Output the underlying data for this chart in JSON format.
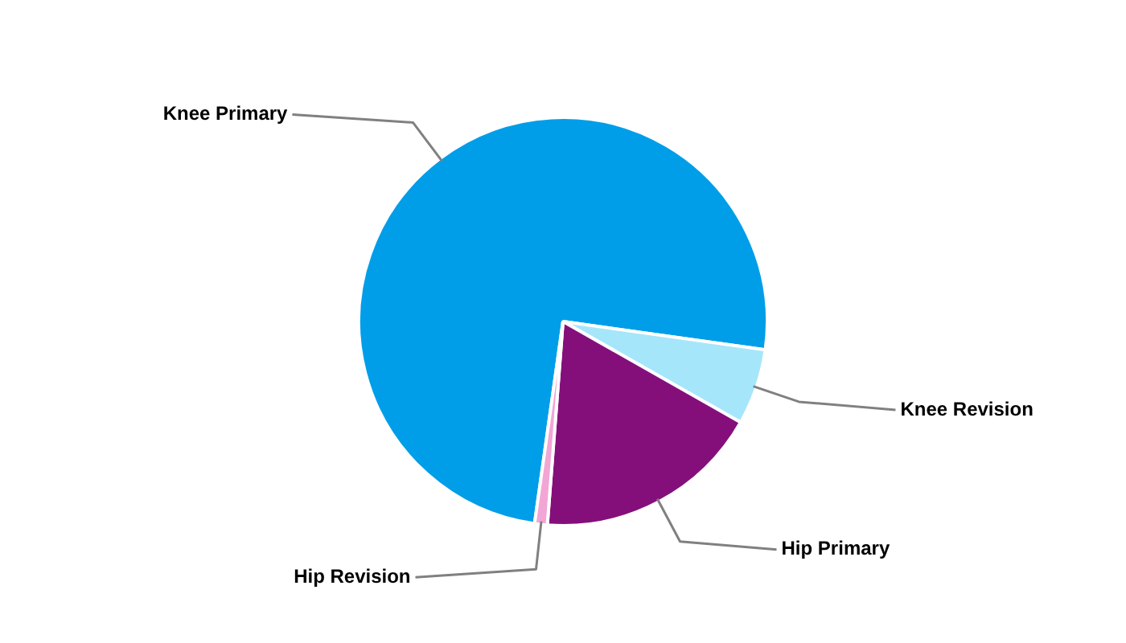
{
  "chart_data": {
    "type": "pie",
    "categories": [
      "Knee Primary",
      "Knee Revision",
      "Hip Primary",
      "Hip Revision"
    ],
    "values": [
      75,
      6,
      18,
      1
    ],
    "colors": [
      "#009ee8",
      "#a6e6fb",
      "#850f7a",
      "#f2a6d6"
    ],
    "legend": false
  }
}
